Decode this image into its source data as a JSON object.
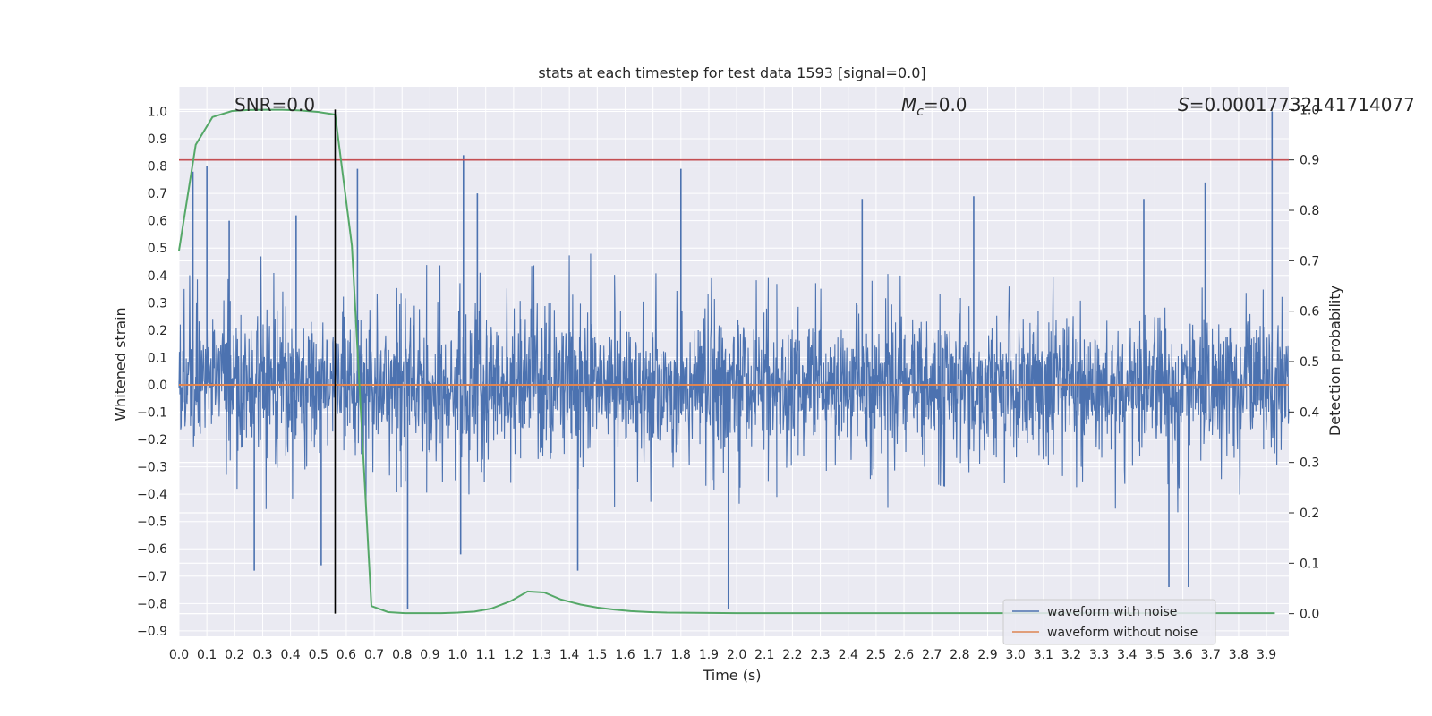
{
  "chart_data": {
    "type": "line",
    "title": "stats at each timestep for test data 1593 [signal=0.0]",
    "xlabel": "Time (s)",
    "ylabel": "Whitened strain",
    "y2label": "Detection probability",
    "xlim": [
      0.0,
      3.98
    ],
    "ylim": [
      -0.92,
      1.09
    ],
    "y2lim": [
      -0.045,
      1.045
    ],
    "xticks": [
      "0.0",
      "0.1",
      "0.2",
      "0.3",
      "0.4",
      "0.5",
      "0.6",
      "0.7",
      "0.8",
      "0.9",
      "1.0",
      "1.1",
      "1.2",
      "1.3",
      "1.4",
      "1.5",
      "1.6",
      "1.7",
      "1.8",
      "1.9",
      "2.0",
      "2.1",
      "2.2",
      "2.3",
      "2.4",
      "2.5",
      "2.6",
      "2.7",
      "2.8",
      "2.9",
      "3.0",
      "3.1",
      "3.2",
      "3.3",
      "3.4",
      "3.5",
      "3.6",
      "3.7",
      "3.8",
      "3.9"
    ],
    "yticks": [
      "1.0",
      "0.9",
      "0.8",
      "0.7",
      "0.6",
      "0.5",
      "0.4",
      "0.3",
      "0.2",
      "0.1",
      "0.0",
      "−0.1",
      "−0.2",
      "−0.3",
      "−0.4",
      "−0.5",
      "−0.6",
      "−0.7",
      "−0.8",
      "−0.9"
    ],
    "y2ticks": [
      "1.0",
      "0.9",
      "0.8",
      "0.7",
      "0.6",
      "0.5",
      "0.4",
      "0.3",
      "0.2",
      "0.1",
      "0.0"
    ],
    "grid": true,
    "legend_position": "bottom-right",
    "annotations": {
      "snr": "SNR=0.0",
      "mc_symbol": "M",
      "mc_sub": "c",
      "mc_value": "=0.0",
      "s_symbol": "S",
      "s_value": "=0.00017732141714077"
    },
    "threshold_probability": 0.9,
    "event_time": 0.56,
    "series": [
      {
        "name": "waveform with noise",
        "color": "#4c72b0",
        "noise_amplitude": 0.5,
        "spikes": [
          {
            "x": 0.05,
            "y": 0.78
          },
          {
            "x": 0.1,
            "y": 0.8
          },
          {
            "x": 0.18,
            "y": 0.6
          },
          {
            "x": 0.42,
            "y": 0.62
          },
          {
            "x": 0.64,
            "y": 0.79
          },
          {
            "x": 1.02,
            "y": 0.84
          },
          {
            "x": 1.07,
            "y": 0.7
          },
          {
            "x": 1.8,
            "y": 0.79
          },
          {
            "x": 2.45,
            "y": 0.68
          },
          {
            "x": 2.85,
            "y": 0.69
          },
          {
            "x": 3.46,
            "y": 0.68
          },
          {
            "x": 3.68,
            "y": 0.74
          },
          {
            "x": 3.92,
            "y": 1.0
          },
          {
            "x": 0.27,
            "y": -0.68
          },
          {
            "x": 0.51,
            "y": -0.66
          },
          {
            "x": 0.82,
            "y": -0.82
          },
          {
            "x": 1.01,
            "y": -0.62
          },
          {
            "x": 1.43,
            "y": -0.68
          },
          {
            "x": 1.97,
            "y": -0.82
          },
          {
            "x": 3.55,
            "y": -0.74
          },
          {
            "x": 3.62,
            "y": -0.74
          }
        ]
      },
      {
        "name": "waveform without noise",
        "color": "#dd8452",
        "x": [
          0.0,
          3.98
        ],
        "y": [
          0.0,
          0.0
        ]
      },
      {
        "name": "",
        "axis": "right",
        "color": "#55a868",
        "x": [
          0.0,
          0.06,
          0.12,
          0.19,
          0.25,
          0.31,
          0.37,
          0.44,
          0.5,
          0.56,
          0.62,
          0.69,
          0.75,
          0.81,
          0.87,
          0.94,
          1.0,
          1.06,
          1.12,
          1.19,
          1.25,
          1.31,
          1.37,
          1.44,
          1.5,
          1.56,
          1.62,
          1.69,
          1.75,
          2.0,
          2.5,
          3.0,
          3.5,
          3.93
        ],
        "y": [
          0.72,
          0.93,
          0.985,
          0.997,
          0.999,
          0.9995,
          0.9995,
          0.998,
          0.995,
          0.99,
          0.73,
          0.015,
          0.003,
          0.001,
          0.001,
          0.001,
          0.002,
          0.004,
          0.01,
          0.025,
          0.044,
          0.042,
          0.028,
          0.018,
          0.012,
          0.008,
          0.005,
          0.003,
          0.002,
          0.001,
          0.001,
          0.001,
          0.001,
          0.001
        ]
      }
    ]
  }
}
